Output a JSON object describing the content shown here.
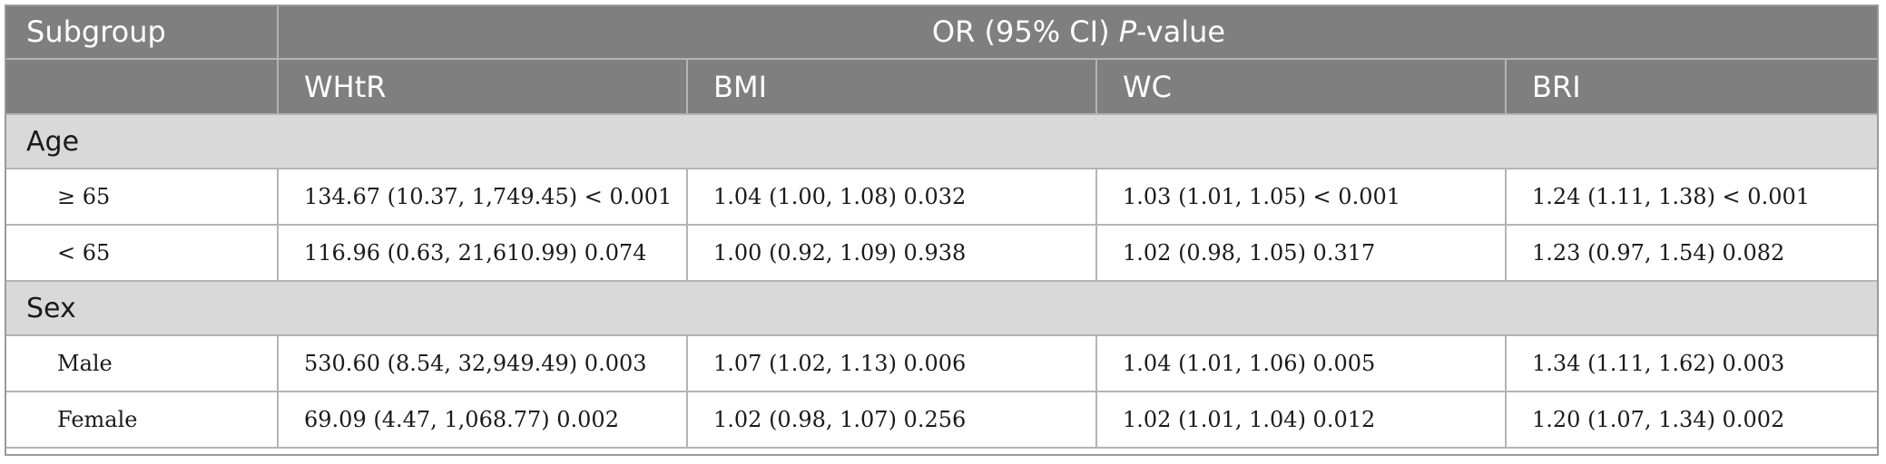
{
  "header": {
    "subgroup_label": "Subgroup",
    "super_header_main": "OR (95% CI) ",
    "super_header_italic": "P",
    "super_header_tail": "-value",
    "columns": [
      "WHtR",
      "BMI",
      "WC",
      "BRI"
    ]
  },
  "groups": [
    {
      "label": "Age",
      "rows": [
        {
          "subgroup": "≥ 65",
          "cells": [
            "134.67 (10.37, 1,749.45) < 0.001",
            "1.04 (1.00, 1.08) 0.032",
            "1.03 (1.01, 1.05) < 0.001",
            "1.24 (1.11, 1.38) < 0.001"
          ]
        },
        {
          "subgroup": "< 65",
          "cells": [
            "116.96 (0.63, 21,610.99) 0.074",
            "1.00 (0.92, 1.09) 0.938",
            "1.02 (0.98, 1.05) 0.317",
            "1.23 (0.97, 1.54) 0.082"
          ]
        }
      ]
    },
    {
      "label": "Sex",
      "rows": [
        {
          "subgroup": "Male",
          "cells": [
            "530.60 (8.54, 32,949.49) 0.003",
            "1.07 (1.02, 1.13) 0.006",
            "1.04 (1.01, 1.06) 0.005",
            "1.34 (1.11, 1.62) 0.003"
          ]
        },
        {
          "subgroup": "Female",
          "cells": [
            "69.09 (4.47, 1,068.77) 0.002",
            "1.02 (0.98, 1.07) 0.256",
            "1.02 (1.01, 1.04) 0.012",
            "1.20 (1.07, 1.34) 0.002"
          ]
        }
      ]
    }
  ]
}
